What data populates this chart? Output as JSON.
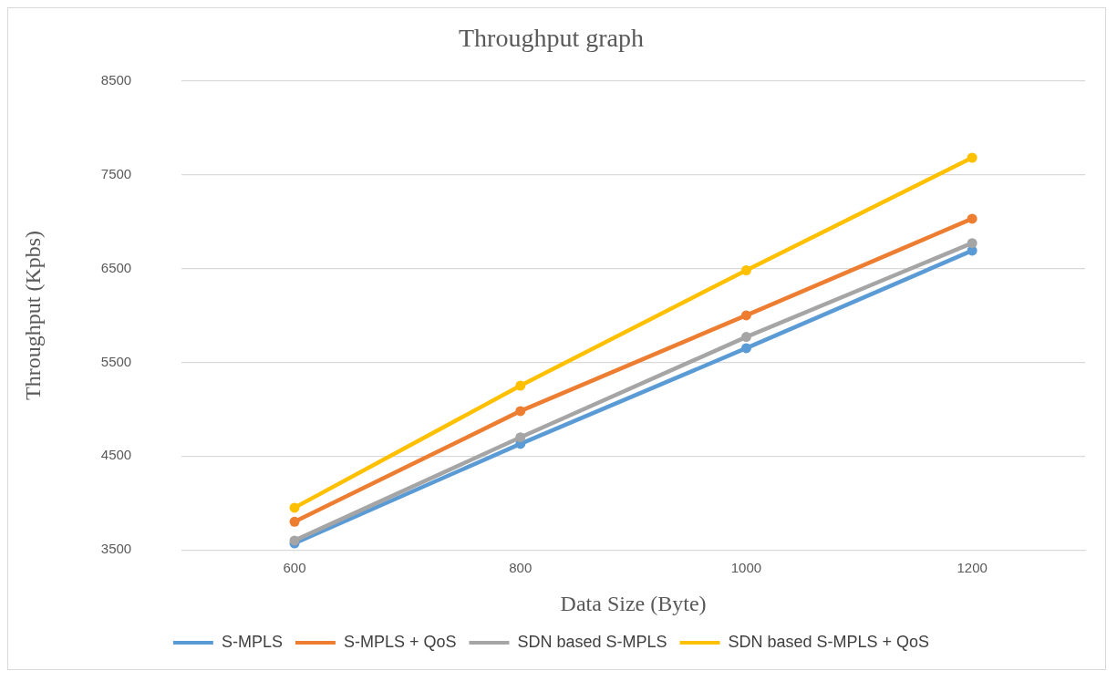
{
  "chart_data": {
    "type": "line",
    "title": "Throughput graph",
    "xlabel": "Data Size (Byte)",
    "ylabel": "Throughput (Kpbs)",
    "categories": [
      "600",
      "800",
      "1000",
      "1200"
    ],
    "series": [
      {
        "name": "S-MPLS",
        "color": "#5b9bd5",
        "values": [
          3570,
          4630,
          5650,
          6690
        ]
      },
      {
        "name": "S-MPLS + QoS",
        "color": "#ed7d31",
        "values": [
          3800,
          4980,
          6000,
          7030
        ]
      },
      {
        "name": "SDN based S-MPLS",
        "color": "#a5a5a5",
        "values": [
          3600,
          4700,
          5770,
          6770
        ]
      },
      {
        "name": "SDN based S-MPLS + QoS",
        "color": "#ffc000",
        "values": [
          3950,
          5250,
          6480,
          7680
        ]
      }
    ],
    "ylim": [
      3500,
      8500
    ],
    "yticks": [
      3500,
      4500,
      5500,
      6500,
      7500,
      8500
    ],
    "grid": "y",
    "legend": "bottom",
    "marker": "circle",
    "line_style": "solid"
  }
}
